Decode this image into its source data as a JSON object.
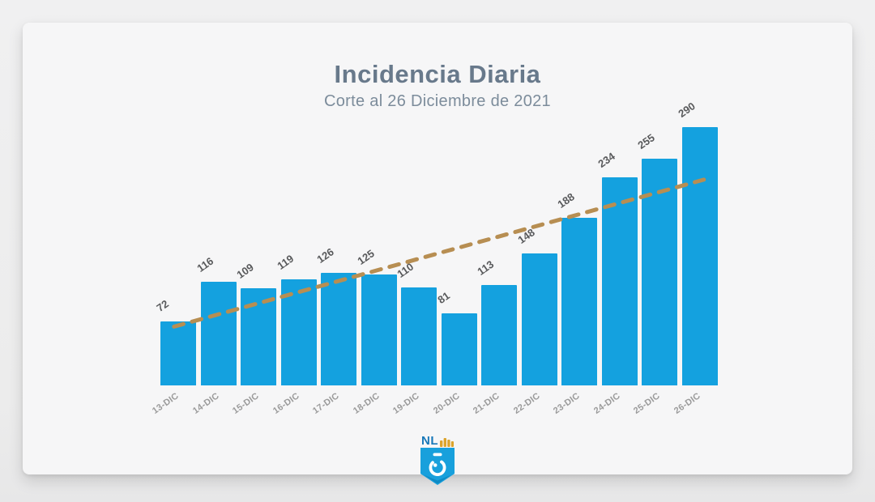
{
  "page": {
    "title": "Incidencia Diaria",
    "subtitle": "Corte al 26 Diciembre de 2021"
  },
  "chart_data": {
    "type": "bar",
    "title": "Incidencia Diaria",
    "subtitle": "Corte al 26 Diciembre de 2021",
    "categories": [
      "13-DIC",
      "14-DIC",
      "15-DIC",
      "16-DIC",
      "17-DIC",
      "18-DIC",
      "19-DIC",
      "20-DIC",
      "21-DIC",
      "22-DIC",
      "23-DIC",
      "24-DIC",
      "25-DIC",
      "26-DIC"
    ],
    "values": [
      72,
      116,
      109,
      119,
      126,
      125,
      110,
      81,
      113,
      148,
      188,
      234,
      255,
      290
    ],
    "xlabel": "",
    "ylabel": "",
    "ylim": [
      0,
      300
    ],
    "grid": false,
    "legend": false,
    "bar_color": "#14A1DF",
    "value_label_color": "#58595b",
    "axis_label_color": "#9b9b9b",
    "trendline": {
      "type": "linear",
      "style": "dashed",
      "color": "#B78E52",
      "start_value": 66,
      "end_value": 231
    }
  },
  "logo": {
    "name": "nuevo-leon-government-logo",
    "text": "NL",
    "text_color": "#1878B9",
    "crown_color": "#DCA42C",
    "shield_color": "#18A0DC"
  }
}
